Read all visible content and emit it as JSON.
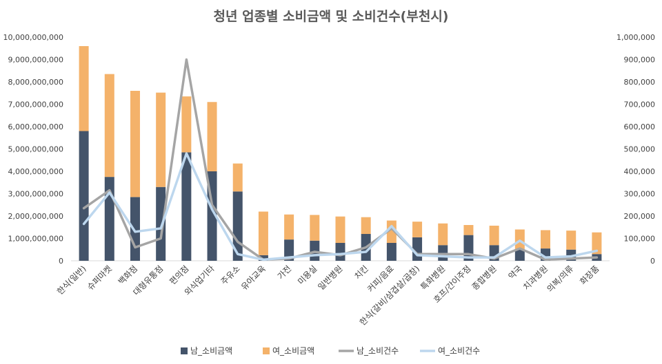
{
  "chart_data": {
    "type": "bar",
    "title": "청년 업종별 소비금액 및 소비건수(부천시)",
    "categories": [
      "한식(일반)",
      "슈퍼마켓",
      "백화점",
      "대형유통점",
      "편의점",
      "외식업기타",
      "주유소",
      "유아교육",
      "가전",
      "미용실",
      "일반병원",
      "치킨",
      "커피/음료",
      "한식(갈비/삼겹살/곱창)",
      "특화병원",
      "호프/간이주점",
      "종합병원",
      "약국",
      "치과병원",
      "의복/의류",
      "화장품"
    ],
    "series": [
      {
        "name": "남_소비금액",
        "kind": "stacked-bar",
        "axis": "left",
        "color": "#44546a",
        "values": [
          5800000000,
          3750000000,
          2850000000,
          3300000000,
          4850000000,
          4000000000,
          3100000000,
          250000000,
          950000000,
          900000000,
          800000000,
          1200000000,
          800000000,
          1050000000,
          700000000,
          1150000000,
          700000000,
          500000000,
          550000000,
          500000000,
          300000000
        ]
      },
      {
        "name": "여_소비금액",
        "kind": "stacked-bar",
        "axis": "left",
        "color": "#f4b26a",
        "values": [
          3800000000,
          4600000000,
          4750000000,
          4220000000,
          2500000000,
          3100000000,
          1250000000,
          1950000000,
          1120000000,
          1150000000,
          1180000000,
          750000000,
          1000000000,
          700000000,
          970000000,
          450000000,
          870000000,
          900000000,
          820000000,
          850000000,
          970000000
        ]
      },
      {
        "name": "남_소비건수",
        "kind": "line",
        "axis": "right",
        "color": "#a5a5a5",
        "values": [
          235000,
          315000,
          60000,
          100000,
          900000,
          250000,
          85000,
          5000,
          10000,
          40000,
          25000,
          60000,
          145000,
          30000,
          30000,
          30000,
          10000,
          55000,
          5000,
          10000,
          15000
        ]
      },
      {
        "name": "여_소비건수",
        "kind": "line",
        "axis": "right",
        "color": "#bdd7ee",
        "values": [
          165000,
          305000,
          130000,
          145000,
          480000,
          230000,
          30000,
          5000,
          15000,
          25000,
          30000,
          40000,
          155000,
          25000,
          20000,
          15000,
          15000,
          90000,
          15000,
          20000,
          45000
        ]
      }
    ],
    "y_left": {
      "min": 0,
      "max": 10000000000,
      "step": 1000000000,
      "ticks": [
        "0",
        "1,000,000,000",
        "2,000,000,000",
        "3,000,000,000",
        "4,000,000,000",
        "5,000,000,000",
        "6,000,000,000",
        "7,000,000,000",
        "8,000,000,000",
        "9,000,000,000",
        "10,000,000,000"
      ]
    },
    "y_right": {
      "min": 0,
      "max": 1000000,
      "step": 100000,
      "ticks": [
        "0",
        "100,000",
        "200,000",
        "300,000",
        "400,000",
        "500,000",
        "600,000",
        "700,000",
        "800,000",
        "900,000",
        "1,000,000"
      ]
    },
    "grid": false,
    "legend": "bottom"
  }
}
